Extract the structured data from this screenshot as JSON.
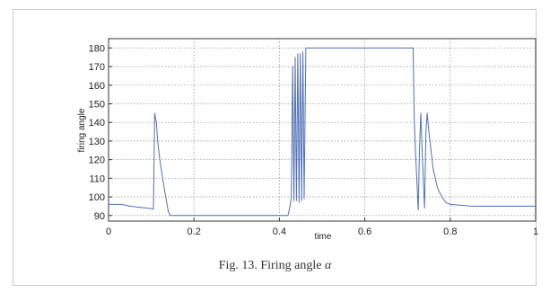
{
  "caption": {
    "prefix": "Fig. 13.    Firing angle ",
    "symbol": "α"
  },
  "chart_data": {
    "type": "line",
    "xlabel": "time",
    "ylabel": "firing angle",
    "xlim": [
      0,
      1
    ],
    "ylim": [
      87,
      185
    ],
    "xticks": [
      0,
      0.2,
      0.4,
      0.6,
      0.8,
      1
    ],
    "xtick_labels": [
      "0",
      "0.2",
      "0.4",
      "0.6",
      "0.8",
      "1"
    ],
    "yticks": [
      90,
      100,
      110,
      120,
      130,
      140,
      150,
      160,
      170,
      180
    ],
    "ytick_labels": [
      "90",
      "100",
      "110",
      "120",
      "130",
      "140",
      "150",
      "160",
      "170",
      "180"
    ],
    "grid": true,
    "line_color": "#4f6fb8",
    "series": [
      {
        "x": [
          0,
          0.03,
          0.05,
          0.07,
          0.09,
          0.105,
          0.108,
          0.112,
          0.115,
          0.12,
          0.13,
          0.14,
          0.145,
          0.2,
          0.3,
          0.4,
          0.42,
          0.425,
          0.428,
          0.431,
          0.434,
          0.437,
          0.44,
          0.443,
          0.446,
          0.449,
          0.452,
          0.455,
          0.458,
          0.462,
          0.466,
          0.47,
          0.5,
          0.6,
          0.7,
          0.713,
          0.716,
          0.72,
          0.725,
          0.728,
          0.731,
          0.735,
          0.74,
          0.743,
          0.746,
          0.75,
          0.755,
          0.76,
          0.77,
          0.78,
          0.79,
          0.8,
          0.85,
          0.9,
          0.95,
          1
        ],
        "y": [
          96,
          96,
          95,
          94.5,
          94,
          93.5,
          145,
          140,
          130,
          120,
          105,
          92,
          90,
          90,
          90,
          90,
          90,
          95,
          100,
          170,
          98,
          175,
          98,
          177,
          97,
          177,
          98,
          178,
          99,
          180,
          180,
          180,
          180,
          180,
          180,
          180,
          140,
          118,
          93,
          125,
          145,
          120,
          94,
          135,
          145,
          135,
          125,
          115,
          105,
          100,
          97,
          96,
          95,
          95,
          95,
          95
        ]
      }
    ]
  }
}
